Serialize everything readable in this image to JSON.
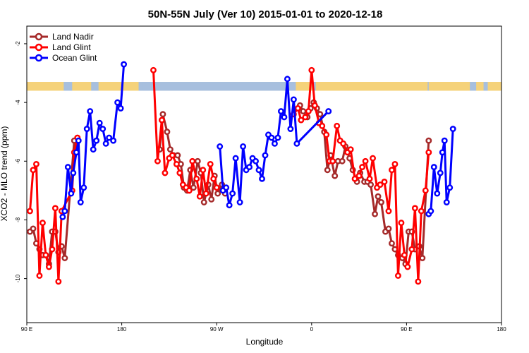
{
  "chart_data": {
    "type": "line",
    "title": "50N-55N July (Ver 10)   2015-01-01 to 2020-12-18",
    "xlabel": "Longitude",
    "ylabel": "XCO2 - MLO trend (ppm)",
    "xlim": [
      90,
      540
    ],
    "ylim": [
      -11.5,
      -1.4
    ],
    "x_ticks": [
      {
        "value": 90,
        "label": "90 E"
      },
      {
        "value": 180,
        "label": "180"
      },
      {
        "value": 270,
        "label": "90 W"
      },
      {
        "value": 360,
        "label": "0"
      },
      {
        "value": 450,
        "label": "90 E"
      },
      {
        "value": 540,
        "label": "180"
      }
    ],
    "y_ticks": [
      {
        "value": -2,
        "label": "-2"
      },
      {
        "value": -4,
        "label": "-4"
      },
      {
        "value": -6,
        "label": "-6"
      },
      {
        "value": -8,
        "label": "-8"
      },
      {
        "value": -10,
        "label": "-10"
      }
    ],
    "legend_position": "top-left",
    "land_mask_band": {
      "y_top": -3.3,
      "y_bottom": -3.6,
      "land_color": "#f5d27a",
      "ocean_color": "#a7bfde"
    },
    "series": [
      {
        "name": "Land Nadir",
        "color": "#a52a2a",
        "points": [
          [
            93,
            -8.4
          ],
          [
            96,
            -8.3
          ],
          [
            99,
            -8.8
          ],
          [
            102,
            -9.0
          ],
          [
            105,
            -9.2
          ],
          [
            108,
            -9.2
          ],
          [
            111,
            -9.5
          ],
          [
            114,
            -8.4
          ],
          [
            117,
            -8.4
          ],
          [
            120,
            -9.1
          ],
          [
            123,
            -8.9
          ],
          [
            126,
            -9.3
          ],
          [
            135,
            -5.3
          ],
          [
            216,
            -5.6
          ],
          [
            219,
            -4.4
          ],
          [
            223,
            -5.0
          ],
          [
            226,
            -5.6
          ],
          [
            229,
            -5.8
          ],
          [
            233,
            -5.8
          ],
          [
            236,
            -6.1
          ],
          [
            239,
            -6.9
          ],
          [
            242,
            -7.0
          ],
          [
            245,
            -6.3
          ],
          [
            248,
            -6.9
          ],
          [
            252,
            -6.0
          ],
          [
            255,
            -6.4
          ],
          [
            258,
            -7.4
          ],
          [
            262,
            -6.8
          ],
          [
            265,
            -7.3
          ],
          [
            268,
            -6.5
          ],
          [
            271,
            -7.1
          ],
          [
            275,
            -6.8
          ],
          [
            278,
            -7.1
          ],
          [
            349,
            -4.1
          ],
          [
            352,
            -4.3
          ],
          [
            356,
            -4.5
          ],
          [
            359,
            -4.2
          ],
          [
            362,
            -4.0
          ],
          [
            365,
            -4.2
          ],
          [
            368,
            -4.4
          ],
          [
            372,
            -5.0
          ],
          [
            375,
            -6.3
          ],
          [
            378,
            -5.8
          ],
          [
            382,
            -6.5
          ],
          [
            385,
            -6.0
          ],
          [
            389,
            -6.0
          ],
          [
            392,
            -5.5
          ],
          [
            396,
            -5.9
          ],
          [
            399,
            -6.3
          ],
          [
            403,
            -6.7
          ],
          [
            406,
            -6.4
          ],
          [
            410,
            -6.7
          ],
          [
            413,
            -6.7
          ],
          [
            416,
            -6.8
          ],
          [
            420,
            -7.8
          ],
          [
            423,
            -7.2
          ],
          [
            426,
            -7.4
          ],
          [
            430,
            -8.4
          ],
          [
            433,
            -8.3
          ],
          [
            436,
            -8.8
          ],
          [
            439,
            -9.0
          ],
          [
            442,
            -9.2
          ],
          [
            446,
            -9.3
          ],
          [
            449,
            -9.5
          ],
          [
            452,
            -8.4
          ],
          [
            455,
            -8.4
          ],
          [
            458,
            -9.0
          ],
          [
            462,
            -8.9
          ],
          [
            465,
            -9.3
          ],
          [
            471,
            -5.3
          ]
        ]
      },
      {
        "name": "Land Glint",
        "color": "#ff0000",
        "points": [
          [
            93,
            -7.7
          ],
          [
            96,
            -6.3
          ],
          [
            99,
            -6.1
          ],
          [
            102,
            -9.9
          ],
          [
            105,
            -8.1
          ],
          [
            108,
            -9.2
          ],
          [
            111,
            -9.6
          ],
          [
            114,
            -9.0
          ],
          [
            117,
            -7.6
          ],
          [
            120,
            -10.1
          ],
          [
            123,
            -7.7
          ],
          [
            133,
            -7.0
          ],
          [
            135,
            -5.7
          ],
          [
            138,
            -5.2
          ],
          [
            210,
            -2.9
          ],
          [
            214,
            -6.0
          ],
          [
            218,
            -4.6
          ],
          [
            221,
            -6.4
          ],
          [
            225,
            -5.9
          ],
          [
            228,
            -5.8
          ],
          [
            232,
            -6.1
          ],
          [
            235,
            -6.4
          ],
          [
            238,
            -6.8
          ],
          [
            241,
            -6.9
          ],
          [
            244,
            -7.0
          ],
          [
            247,
            -6.0
          ],
          [
            251,
            -6.6
          ],
          [
            254,
            -7.2
          ],
          [
            257,
            -6.3
          ],
          [
            260,
            -7.1
          ],
          [
            264,
            -6.1
          ],
          [
            267,
            -6.6
          ],
          [
            270,
            -6.9
          ],
          [
            343,
            -4.4
          ],
          [
            347,
            -4.2
          ],
          [
            350,
            -4.6
          ],
          [
            354,
            -4.5
          ],
          [
            357,
            -4.3
          ],
          [
            360,
            -2.9
          ],
          [
            363,
            -4.1
          ],
          [
            367,
            -4.7
          ],
          [
            370,
            -4.8
          ],
          [
            374,
            -5.1
          ],
          [
            377,
            -6.0
          ],
          [
            380,
            -6.0
          ],
          [
            384,
            -4.8
          ],
          [
            387,
            -5.3
          ],
          [
            390,
            -5.4
          ],
          [
            394,
            -5.7
          ],
          [
            397,
            -5.6
          ],
          [
            401,
            -6.6
          ],
          [
            405,
            -6.5
          ],
          [
            408,
            -6.2
          ],
          [
            411,
            -6.0
          ],
          [
            415,
            -6.6
          ],
          [
            418,
            -5.9
          ],
          [
            422,
            -6.9
          ],
          [
            425,
            -6.8
          ],
          [
            429,
            -6.7
          ],
          [
            433,
            -7.7
          ],
          [
            436,
            -6.3
          ],
          [
            439,
            -6.1
          ],
          [
            442,
            -9.9
          ],
          [
            445,
            -8.1
          ],
          [
            448,
            -9.2
          ],
          [
            451,
            -9.6
          ],
          [
            455,
            -9.0
          ],
          [
            458,
            -7.6
          ],
          [
            461,
            -10.1
          ],
          [
            464,
            -7.7
          ],
          [
            468,
            -7.0
          ],
          [
            471,
            -5.7
          ]
        ]
      },
      {
        "name": "Ocean Glint",
        "color": "#0000ff",
        "points": [
          [
            124,
            -7.9
          ],
          [
            126,
            -7.7
          ],
          [
            129,
            -6.2
          ],
          [
            132,
            -7.1
          ],
          [
            134,
            -6.4
          ],
          [
            137,
            -5.7
          ],
          [
            139,
            -5.3
          ],
          [
            141,
            -7.4
          ],
          [
            144,
            -6.9
          ],
          [
            147,
            -4.9
          ],
          [
            150,
            -4.3
          ],
          [
            153,
            -5.6
          ],
          [
            156,
            -5.3
          ],
          [
            159,
            -4.7
          ],
          [
            162,
            -4.9
          ],
          [
            165,
            -5.4
          ],
          [
            168,
            -5.2
          ],
          [
            172,
            -5.3
          ],
          [
            176,
            -4.0
          ],
          [
            179,
            -4.2
          ],
          [
            182,
            -2.7
          ],
          [
            273,
            -5.5
          ],
          [
            276,
            -7.0
          ],
          [
            279,
            -6.9
          ],
          [
            282,
            -7.5
          ],
          [
            285,
            -7.1
          ],
          [
            288,
            -5.9
          ],
          [
            292,
            -7.4
          ],
          [
            295,
            -5.5
          ],
          [
            298,
            -6.3
          ],
          [
            301,
            -6.2
          ],
          [
            304,
            -5.9
          ],
          [
            307,
            -6.0
          ],
          [
            310,
            -6.3
          ],
          [
            313,
            -6.6
          ],
          [
            316,
            -5.8
          ],
          [
            319,
            -5.1
          ],
          [
            322,
            -5.2
          ],
          [
            325,
            -5.4
          ],
          [
            328,
            -5.2
          ],
          [
            331,
            -4.3
          ],
          [
            334,
            -4.5
          ],
          [
            337,
            -3.2
          ],
          [
            340,
            -4.9
          ],
          [
            343,
            -3.9
          ],
          [
            346,
            -5.4
          ],
          [
            376,
            -4.3
          ],
          [
            471,
            -7.8
          ],
          [
            473,
            -7.7
          ],
          [
            476,
            -6.2
          ],
          [
            479,
            -7.1
          ],
          [
            482,
            -6.4
          ],
          [
            484,
            -5.7
          ],
          [
            486,
            -5.3
          ],
          [
            488,
            -7.4
          ],
          [
            491,
            -6.9
          ],
          [
            494,
            -4.9
          ]
        ]
      }
    ]
  }
}
